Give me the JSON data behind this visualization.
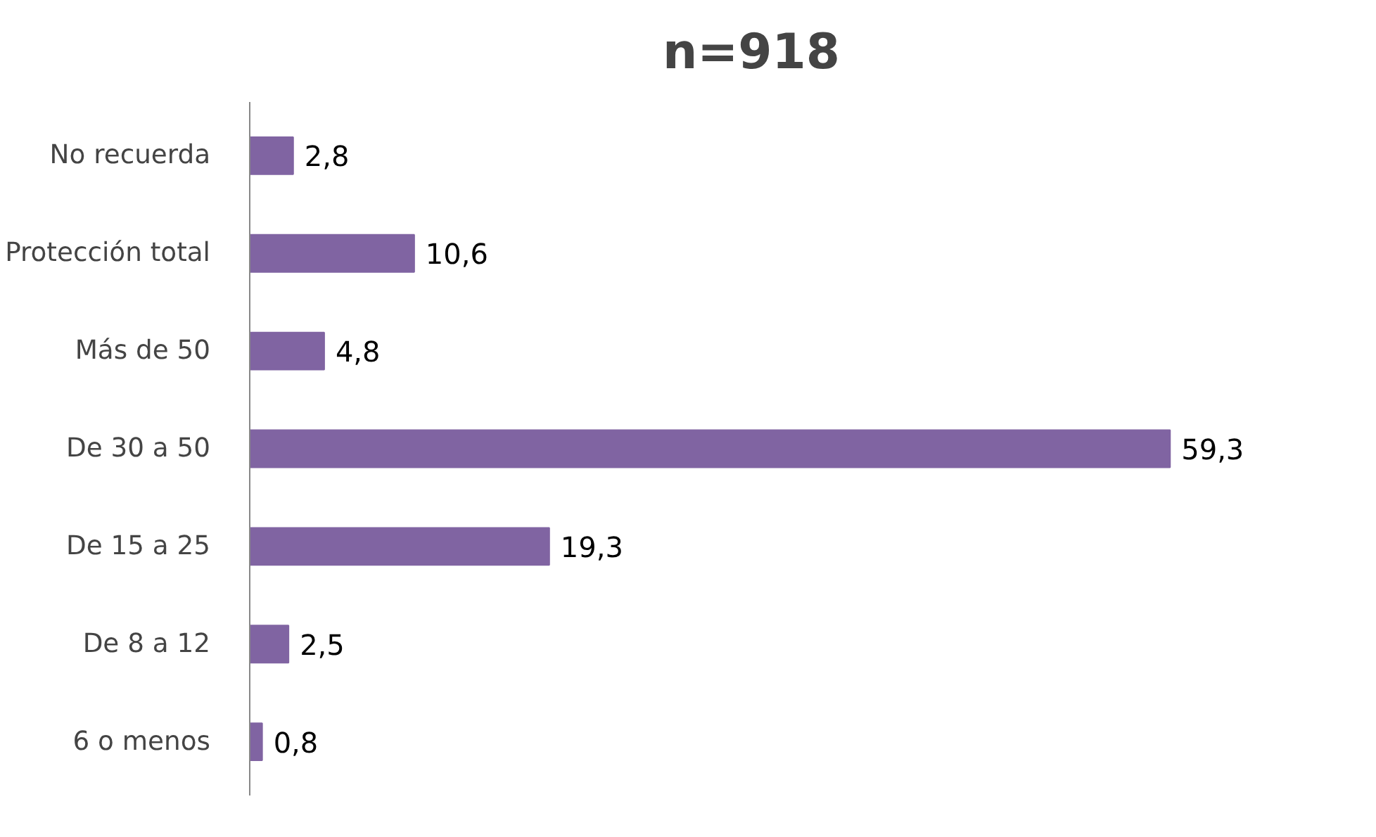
{
  "chart_data": {
    "type": "bar",
    "orientation": "horizontal",
    "title": "n=918",
    "categories": [
      "No recuerda",
      "Protección total",
      "Más de 50",
      "De 30 a 50",
      "De 15 a 25",
      "De 8 a 12",
      "6 o menos"
    ],
    "values": [
      2.8,
      10.6,
      4.8,
      59.3,
      19.3,
      2.5,
      0.8
    ],
    "value_labels": [
      "2,8",
      "10,6",
      "4,8",
      "59,3",
      "19,3",
      "2,5",
      "0,8"
    ],
    "color": "#8064a2"
  }
}
